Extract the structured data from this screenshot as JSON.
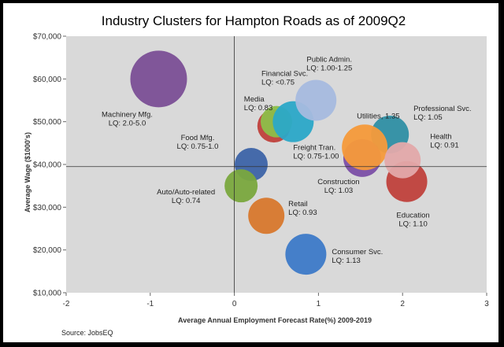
{
  "chart_data": {
    "type": "bubble",
    "title": "Industry Clusters for Hampton Roads as of 2009Q2",
    "xlabel": "Average Annual Employment Forecast Rate(%) 2009-2019",
    "ylabel": "Average Wage ($1000's)",
    "xlim": [
      -2,
      3
    ],
    "ylim": [
      10000,
      70000
    ],
    "x_ticks": [
      "-2",
      "-1",
      "0",
      "1",
      "2",
      "3"
    ],
    "y_ticks": [
      "$10,000",
      "$20,000",
      "$30,000",
      "$40,000",
      "$50,000",
      "$60,000",
      "$70,000"
    ],
    "reference_lines": {
      "x": 0,
      "y": 39500
    },
    "source": "Source: JobsEQ",
    "bubbles": [
      {
        "name": "Machinery Mfg.",
        "lq": "LQ: 2.0-5.0",
        "x": -0.9,
        "y": 60000,
        "r": 36,
        "color": "#7b4f96"
      },
      {
        "name": "Education",
        "lq": "LQ: 1.10",
        "x": 2.05,
        "y": 36000,
        "r": 26,
        "color": "#c0413c"
      },
      {
        "name": "Professional Svc.",
        "lq": "LQ: 1.05",
        "x": 1.85,
        "y": 47000,
        "r": 24,
        "color": "#2f8fa4"
      },
      {
        "name": "Construction",
        "lq": "LQ: 1.03",
        "x": 1.52,
        "y": 41500,
        "r": 24,
        "color": "#7b4fa6"
      },
      {
        "name": "Utilities, 1.35",
        "lq": "",
        "x": 1.55,
        "y": 44000,
        "r": 29,
        "color": "#f59a3a"
      },
      {
        "name": "Health",
        "lq": "LQ: 0.91",
        "x": 2.0,
        "y": 41000,
        "r": 23,
        "color": "#e3a9aa"
      },
      {
        "name": "Media",
        "lq": "LQ: 0.83",
        "x": 0.47,
        "y": 49000,
        "r": 21,
        "color": "#c0413c"
      },
      {
        "name": "Financial Svc.",
        "lq": "LQ: <0.75",
        "x": 0.5,
        "y": 50000,
        "r": 20,
        "color": "#8dbf4a"
      },
      {
        "name": "Freight Tran.",
        "lq": "LQ: 0.75-1.00",
        "x": 0.7,
        "y": 50000,
        "r": 26,
        "color": "#2ba8c8"
      },
      {
        "name": "Public Admin.",
        "lq": "LQ: 1.00-1.25",
        "x": 0.97,
        "y": 55000,
        "r": 26,
        "color": "#a6bbdf"
      },
      {
        "name": "Food Mfg.",
        "lq": "LQ: 0.75-1.0",
        "x": 0.2,
        "y": 40000,
        "r": 21,
        "color": "#3d64a8"
      },
      {
        "name": "Auto/Auto-related",
        "lq": "LQ: 0.74",
        "x": 0.08,
        "y": 35000,
        "r": 21,
        "color": "#7aa83e"
      },
      {
        "name": "Retail",
        "lq": "LQ: 0.93",
        "x": 0.38,
        "y": 28000,
        "r": 23,
        "color": "#d8782d"
      },
      {
        "name": "Consumer Svc.",
        "lq": "LQ: 1.13",
        "x": 0.85,
        "y": 19000,
        "r": 26,
        "color": "#3d7ac8"
      }
    ]
  }
}
